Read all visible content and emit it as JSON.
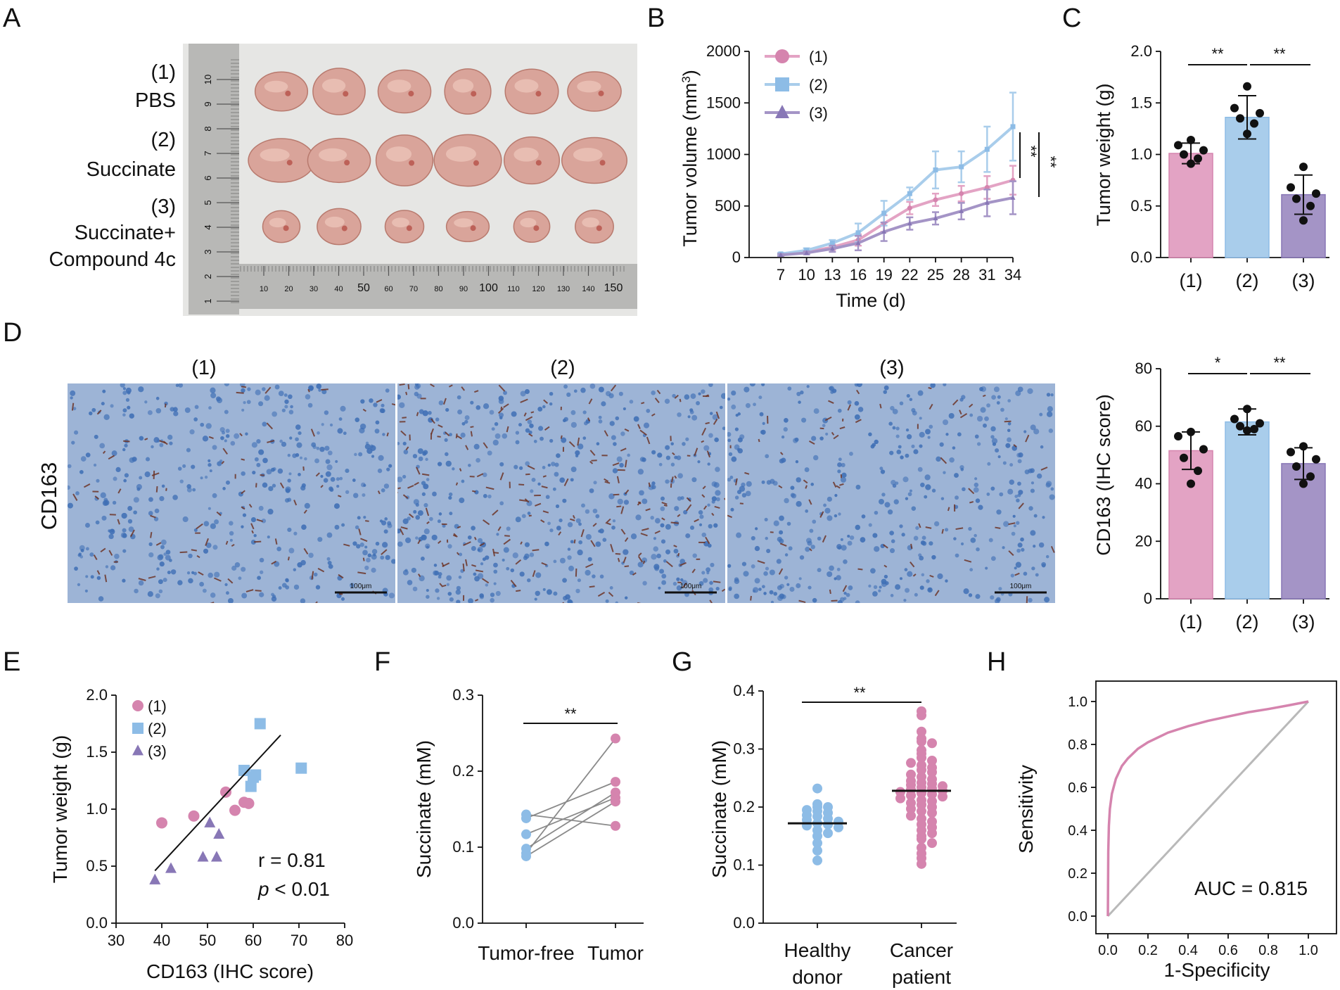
{
  "colors": {
    "g1": "#E3A3C4",
    "g1dark": "#D584AE",
    "g2": "#A9CDEB",
    "g2dark": "#8DBCE6",
    "g3": "#A494C6",
    "g3dark": "#8877B6",
    "ihc_bg": "#9DB4D6",
    "ihc_cell": "#3F6FB5",
    "ihc_brown": "#6B2E1E",
    "roc_ref": "#B9B9B9",
    "photo_bg": "#E6E6E4",
    "ruler": "#B8B8B6"
  },
  "panel_letters": [
    "A",
    "B",
    "C",
    "D",
    "E",
    "F",
    "G",
    "H"
  ],
  "panel_a": {
    "groups": [
      {
        "num": "(1)",
        "name": "PBS",
        "name2": ""
      },
      {
        "num": "(2)",
        "name": "Succinate",
        "name2": ""
      },
      {
        "num": "(3)",
        "name": "Succinate+",
        "name2": "Compound 4c"
      }
    ],
    "ruler_vertical": [
      "1",
      "2",
      "3",
      "4",
      "5",
      "6",
      "7",
      "8",
      "9",
      "10"
    ],
    "ruler_horizontal": [
      "10",
      "20",
      "30",
      "40",
      "50",
      "60",
      "70",
      "80",
      "90",
      "100",
      "110",
      "120",
      "130",
      "140",
      "150"
    ],
    "tumors_per_group": 6
  },
  "panel_d": {
    "row_label": "CD163",
    "image_labels": [
      "(1)",
      "(2)",
      "(3)"
    ],
    "scale_bar": "100μm",
    "stain_density": [
      0.45,
      1.0,
      0.35
    ]
  },
  "chart_data": [
    {
      "id": "B",
      "type": "line",
      "title": "",
      "xlabel": "Time (d)",
      "ylabel": "Tumor volume (mm³)",
      "ylabel_main": "Tumor volume (mm",
      "ylabel_sup": "3",
      "ylabel_end": ")",
      "x": [
        7,
        10,
        13,
        16,
        19,
        22,
        25,
        28,
        31,
        34
      ],
      "xticks": [
        "7",
        "10",
        "13",
        "16",
        "19",
        "22",
        "25",
        "28",
        "31",
        "34"
      ],
      "ylim": [
        0,
        2000
      ],
      "yticks": [
        "0",
        "500",
        "1000",
        "1500",
        "2000"
      ],
      "legend_placement": "top-left",
      "series": [
        {
          "name": "(1)",
          "marker": "circle",
          "values": [
            30,
            55,
            100,
            170,
            330,
            480,
            560,
            620,
            680,
            750
          ],
          "errors": [
            10,
            15,
            25,
            55,
            80,
            60,
            60,
            75,
            110,
            140
          ]
        },
        {
          "name": "(2)",
          "marker": "square",
          "values": [
            35,
            70,
            140,
            240,
            430,
            620,
            850,
            880,
            1050,
            1270
          ],
          "errors": [
            10,
            20,
            30,
            90,
            120,
            60,
            180,
            150,
            220,
            330
          ]
        },
        {
          "name": "(3)",
          "marker": "triangle",
          "values": [
            25,
            45,
            85,
            140,
            250,
            330,
            380,
            450,
            530,
            580
          ],
          "errors": [
            10,
            15,
            30,
            70,
            90,
            60,
            60,
            80,
            130,
            160
          ]
        }
      ],
      "annotations": [
        "**",
        "**"
      ]
    },
    {
      "id": "C",
      "type": "bar",
      "ylabel": "Tumor weight (g)",
      "categories": [
        "(1)",
        "(2)",
        "(3)"
      ],
      "values": [
        1.01,
        1.36,
        0.61
      ],
      "errors": [
        0.1,
        0.21,
        0.19
      ],
      "points": [
        [
          1.14,
          1.09,
          1.04,
          1.0,
          0.96,
          0.91
        ],
        [
          1.66,
          1.45,
          1.4,
          1.35,
          1.3,
          1.2
        ],
        [
          0.88,
          0.68,
          0.62,
          0.57,
          0.5,
          0.36
        ]
      ],
      "ylim": [
        0,
        2.0
      ],
      "yticks": [
        "0.0",
        "0.5",
        "1.0",
        "1.5",
        "2.0"
      ],
      "annotations": [
        {
          "from": 0,
          "to": 1,
          "text": "**"
        },
        {
          "from": 1,
          "to": 2,
          "text": "**"
        }
      ]
    },
    {
      "id": "D",
      "type": "bar",
      "ylabel": "CD163  (IHC score)",
      "categories": [
        "(1)",
        "(2)",
        "(3)"
      ],
      "values": [
        51.5,
        61.5,
        47.0
      ],
      "errors": [
        6.5,
        4.5,
        5.5
      ],
      "points": [
        [
          58.0,
          56.5,
          52.0,
          49.0,
          44.5,
          40.0
        ],
        [
          66.0,
          62.5,
          61.0,
          60.0,
          59.0,
          58.5
        ],
        [
          53.0,
          51.0,
          48.5,
          46.0,
          42.5,
          40.0
        ]
      ],
      "ylim": [
        0,
        80
      ],
      "yticks": [
        "0",
        "20",
        "40",
        "60",
        "80"
      ],
      "annotations": [
        {
          "from": 0,
          "to": 1,
          "text": "*"
        },
        {
          "from": 1,
          "to": 2,
          "text": "**"
        }
      ]
    },
    {
      "id": "E",
      "type": "scatter",
      "xlabel": "CD163  (IHC score)",
      "ylabel": "Tumor weight (g)",
      "xlim": [
        30,
        80
      ],
      "ylim": [
        0,
        2.0
      ],
      "xticks": [
        "30",
        "40",
        "50",
        "60",
        "70",
        "80"
      ],
      "yticks": [
        "0.0",
        "0.5",
        "1.0",
        "1.5",
        "2.0"
      ],
      "legend_placement": "top-left",
      "series": [
        {
          "name": "(1)",
          "marker": "circle",
          "x": [
            40.0,
            47.0,
            54.0,
            56.0,
            58.0,
            59.0
          ],
          "y": [
            0.88,
            0.94,
            1.15,
            0.99,
            1.06,
            1.05
          ]
        },
        {
          "name": "(2)",
          "marker": "square",
          "x": [
            58.0,
            59.5,
            60.0,
            61.5,
            70.5,
            60.5
          ],
          "y": [
            1.34,
            1.2,
            1.28,
            1.75,
            1.36,
            1.3
          ]
        },
        {
          "name": "(3)",
          "marker": "triangle",
          "x": [
            38.5,
            42.0,
            49.0,
            50.5,
            52.5,
            52.0
          ],
          "y": [
            0.38,
            0.48,
            0.58,
            0.88,
            0.78,
            0.58
          ]
        }
      ],
      "fit_line": {
        "x": [
          38.5,
          66.0
        ],
        "y": [
          0.46,
          1.65
        ]
      },
      "stat_r": "r = 0.81",
      "stat_p_italic": "p",
      "stat_p_rest": " < 0.01"
    },
    {
      "id": "F",
      "type": "scatter",
      "ylabel": "Succinate (mM)",
      "categories": [
        "Tumor-free",
        "Tumor"
      ],
      "ylim": [
        0,
        0.3
      ],
      "yticks": [
        "0.0",
        "0.1",
        "0.2",
        "0.3"
      ],
      "pairs": [
        [
          0.143,
          0.128
        ],
        [
          0.138,
          0.186
        ],
        [
          0.117,
          0.165
        ],
        [
          0.098,
          0.172
        ],
        [
          0.092,
          0.243
        ],
        [
          0.088,
          0.16
        ]
      ],
      "annotation": "**"
    },
    {
      "id": "G",
      "type": "scatter",
      "ylabel": "Succinate (mM)",
      "categories": [
        "Healthy",
        "Cancer"
      ],
      "categories_line2": [
        "donor",
        "patient"
      ],
      "ylim": [
        0,
        0.4
      ],
      "yticks": [
        "0.0",
        "0.1",
        "0.2",
        "0.3",
        "0.4"
      ],
      "means": [
        0.172,
        0.228
      ],
      "group_values": [
        [
          0.232,
          0.205,
          0.2,
          0.2,
          0.195,
          0.193,
          0.19,
          0.186,
          0.184,
          0.18,
          0.178,
          0.175,
          0.172,
          0.17,
          0.168,
          0.165,
          0.16,
          0.155,
          0.15,
          0.138,
          0.125,
          0.108
        ],
        [
          0.365,
          0.358,
          0.33,
          0.318,
          0.313,
          0.31,
          0.298,
          0.292,
          0.285,
          0.28,
          0.276,
          0.272,
          0.268,
          0.264,
          0.26,
          0.256,
          0.252,
          0.248,
          0.245,
          0.242,
          0.24,
          0.238,
          0.236,
          0.234,
          0.232,
          0.23,
          0.228,
          0.226,
          0.224,
          0.222,
          0.22,
          0.218,
          0.215,
          0.212,
          0.21,
          0.207,
          0.204,
          0.2,
          0.197,
          0.193,
          0.19,
          0.185,
          0.18,
          0.175,
          0.17,
          0.165,
          0.16,
          0.155,
          0.15,
          0.145,
          0.138,
          0.13,
          0.12,
          0.112,
          0.102
        ]
      ],
      "annotation": "**"
    },
    {
      "id": "H",
      "type": "line",
      "xlabel": "1-Specificity",
      "ylabel": "Sensitivity",
      "xlim": [
        0,
        1.0
      ],
      "ylim": [
        0,
        1.0
      ],
      "xticks": [
        "0.0",
        "0.2",
        "0.4",
        "0.6",
        "0.8",
        "1.0"
      ],
      "yticks": [
        "0.0",
        "0.2",
        "0.4",
        "0.6",
        "0.8",
        "1.0"
      ],
      "roc": {
        "x": [
          0,
          0.002,
          0.005,
          0.01,
          0.02,
          0.04,
          0.07,
          0.1,
          0.15,
          0.2,
          0.3,
          0.4,
          0.5,
          0.6,
          0.7,
          0.8,
          0.9,
          1.0
        ],
        "y": [
          0,
          0.3,
          0.42,
          0.5,
          0.57,
          0.64,
          0.7,
          0.735,
          0.78,
          0.81,
          0.855,
          0.885,
          0.91,
          0.93,
          0.95,
          0.965,
          0.982,
          1.0
        ]
      },
      "reference": {
        "x": [
          0,
          1
        ],
        "y": [
          0,
          1
        ]
      },
      "auc_text": "AUC = 0.815"
    }
  ]
}
